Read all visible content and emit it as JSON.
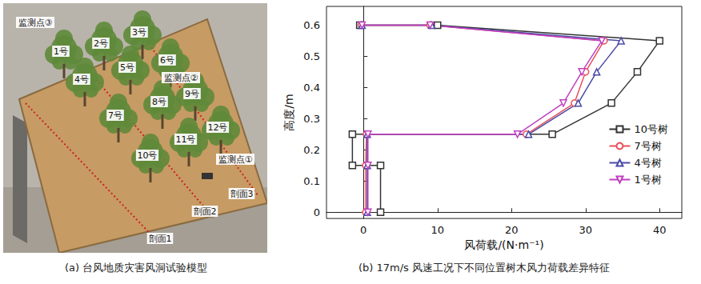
{
  "chart_data": {
    "type": "line",
    "xlabel": "风荷载/(N·m⁻¹)",
    "ylabel": "高度/m",
    "xlim": [
      -5,
      43
    ],
    "xticks": [
      0,
      10,
      20,
      30,
      40
    ],
    "ylim": [
      -0.02,
      0.66
    ],
    "yticks": [
      0,
      0.1,
      0.2,
      0.3,
      0.4,
      0.5,
      0.6
    ],
    "grid": false,
    "legend": "right",
    "series": [
      {
        "name": "10号树",
        "color": "#333333",
        "marker": "square",
        "x": [
          2.3,
          2.3,
          -1.5,
          -1.5,
          25.5,
          33.5,
          37,
          40,
          10,
          -0.5
        ],
        "values": [
          0,
          0.15,
          0.15,
          0.25,
          0.25,
          0.35,
          0.45,
          0.55,
          0.6,
          0.6
        ]
      },
      {
        "name": "7号树",
        "color": "#e8505b",
        "marker": "circle",
        "x": [
          0.3,
          0.3,
          0.4,
          22,
          28.5,
          30,
          32.5,
          9,
          -0.3
        ],
        "values": [
          0,
          0.15,
          0.25,
          0.25,
          0.35,
          0.45,
          0.55,
          0.6,
          0.6
        ]
      },
      {
        "name": "4号树",
        "color": "#4a4aa8",
        "marker": "triangle",
        "x": [
          0.5,
          0.5,
          0.5,
          22.3,
          29,
          31.5,
          34.8,
          9.2,
          -0.2
        ],
        "values": [
          0,
          0.15,
          0.25,
          0.25,
          0.35,
          0.45,
          0.55,
          0.6,
          0.6
        ]
      },
      {
        "name": "1号树",
        "color": "#c040c0",
        "marker": "triangle-down",
        "x": [
          0.6,
          0.6,
          0.6,
          20.8,
          27,
          29.5,
          32.2,
          9,
          -0.2
        ],
        "values": [
          0,
          0.15,
          0.25,
          0.25,
          0.35,
          0.45,
          0.55,
          0.6,
          0.6
        ]
      }
    ],
    "caption": "(b) 17m/s 风速工况下不同位置树木风力荷载差异特征"
  },
  "panel_a": {
    "caption": "(a) 台风地质灾害风洞试验模型",
    "labels": [
      "监测点③",
      "1号",
      "2号",
      "3号",
      "4号",
      "5号",
      "6号",
      "监测点②",
      "7号",
      "8号",
      "9号",
      "10号",
      "11号",
      "12号",
      "监测点①",
      "剖面3",
      "剖面2",
      "剖面1"
    ]
  }
}
